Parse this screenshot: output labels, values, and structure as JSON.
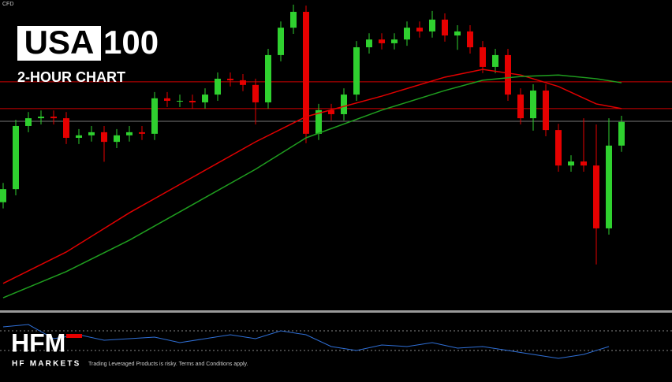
{
  "chart_data": {
    "type": "candlestick",
    "corner_label": "CFD",
    "title_box": "USA",
    "title": "100",
    "subtitle": "2-HOUR CHART",
    "ylim": [
      0,
      100
    ],
    "colors": {
      "up": "#2fd12f",
      "down": "#e60000"
    },
    "open": [
      35.0,
      39.2,
      59.5,
      62.0,
      62.5,
      62.0,
      55.7,
      56.5,
      57.5,
      54.4,
      56.5,
      57.5,
      57.0,
      68.4,
      67.6,
      67.6,
      67.1,
      69.6,
      74.7,
      74.2,
      72.7,
      67.1,
      82.3,
      91.1,
      96.2,
      57.0,
      64.6,
      63.3,
      69.6,
      84.8,
      87.3,
      86.1,
      87.3,
      91.1,
      89.9,
      93.7,
      88.6,
      89.9,
      84.8,
      78.5,
      82.3,
      69.6,
      62.0,
      70.9,
      58.2,
      46.8,
      48.1,
      46.8,
      26.6,
      53.2
    ],
    "high": [
      41.2,
      61.5,
      64.0,
      64.5,
      64.5,
      64.0,
      58.5,
      59.5,
      59.5,
      58.5,
      59.5,
      59.5,
      70.4,
      70.4,
      69.6,
      69.6,
      71.6,
      76.7,
      76.7,
      76.2,
      74.7,
      84.3,
      93.1,
      98.5,
      98.2,
      66.6,
      66.6,
      71.6,
      86.8,
      89.3,
      89.3,
      89.3,
      93.1,
      93.1,
      96.5,
      95.7,
      91.9,
      91.9,
      86.8,
      84.3,
      84.3,
      71.6,
      72.9,
      72.9,
      60.2,
      50.1,
      62.0,
      60.0,
      62.0,
      62.8
    ],
    "low": [
      33.0,
      37.2,
      57.5,
      60.0,
      60.0,
      53.7,
      53.7,
      54.5,
      48.0,
      52.4,
      54.5,
      55.0,
      55.0,
      65.6,
      65.6,
      65.1,
      65.1,
      67.6,
      72.2,
      70.7,
      60.0,
      65.1,
      80.3,
      89.1,
      54.0,
      55.0,
      61.3,
      61.3,
      67.6,
      82.8,
      84.1,
      84.1,
      85.3,
      87.9,
      87.9,
      86.6,
      84.0,
      82.8,
      76.5,
      76.5,
      67.6,
      60.0,
      58.0,
      56.2,
      44.8,
      44.8,
      44.8,
      15.0,
      24.6,
      51.2
    ],
    "close": [
      39.2,
      59.5,
      62.0,
      62.5,
      62.0,
      55.7,
      56.5,
      57.5,
      54.4,
      56.5,
      57.5,
      57.0,
      68.4,
      67.6,
      67.6,
      67.1,
      69.6,
      74.7,
      74.2,
      72.7,
      67.1,
      82.3,
      91.1,
      96.2,
      57.0,
      64.6,
      63.3,
      69.6,
      84.8,
      87.3,
      86.1,
      87.3,
      91.1,
      89.9,
      93.7,
      88.6,
      89.9,
      84.8,
      78.5,
      82.3,
      69.6,
      62.0,
      70.9,
      58.2,
      46.8,
      48.1,
      46.8,
      26.6,
      53.2,
      60.8
    ],
    "series": [
      {
        "color": "#e00000",
        "x": [
          0,
          5,
          10,
          15,
          20,
          24,
          30,
          35,
          38,
          41,
          44,
          47,
          49
        ],
        "values": [
          8.9,
          19.0,
          31.6,
          43.0,
          54.4,
          62.5,
          69.1,
          75.2,
          77.7,
          75.9,
          72.2,
          66.6,
          65.1
        ]
      },
      {
        "color": "#1f9e1f",
        "x": [
          0,
          5,
          10,
          15,
          20,
          24,
          30,
          35,
          38,
          41,
          44,
          47,
          49
        ],
        "values": [
          4.3,
          12.7,
          22.8,
          34.2,
          45.6,
          55.7,
          64.6,
          70.9,
          74.2,
          75.4,
          75.9,
          74.7,
          73.4
        ]
      }
    ],
    "levels": [
      {
        "value": 73.7,
        "color": "#d00000"
      },
      {
        "value": 65.1,
        "color": "#d00000"
      },
      {
        "value": 61.0,
        "color": "#777777"
      }
    ],
    "oscillator": {
      "color": "#2f6fd6",
      "ylim": [
        0,
        100
      ],
      "levels": [
        76.9,
        38.5
      ],
      "x": [
        0,
        2,
        4,
        6,
        8,
        10,
        12,
        14,
        16,
        18,
        20,
        22,
        24,
        26,
        28,
        30,
        32,
        34,
        36,
        38,
        40,
        42,
        44,
        46,
        48
      ],
      "values": [
        84.6,
        89.2,
        61.5,
        69.2,
        58.5,
        61.5,
        64.6,
        53.8,
        61.5,
        69.2,
        61.5,
        76.9,
        69.2,
        46.2,
        38.5,
        49.2,
        46.2,
        53.8,
        43.1,
        46.2,
        38.5,
        30.8,
        23.1,
        30.8,
        46.2
      ]
    },
    "brand": {
      "logo": "HFM",
      "name": "HF MARKETS",
      "disclaimer": "Trading Leveraged Products is risky. Terms and Conditions apply."
    }
  }
}
